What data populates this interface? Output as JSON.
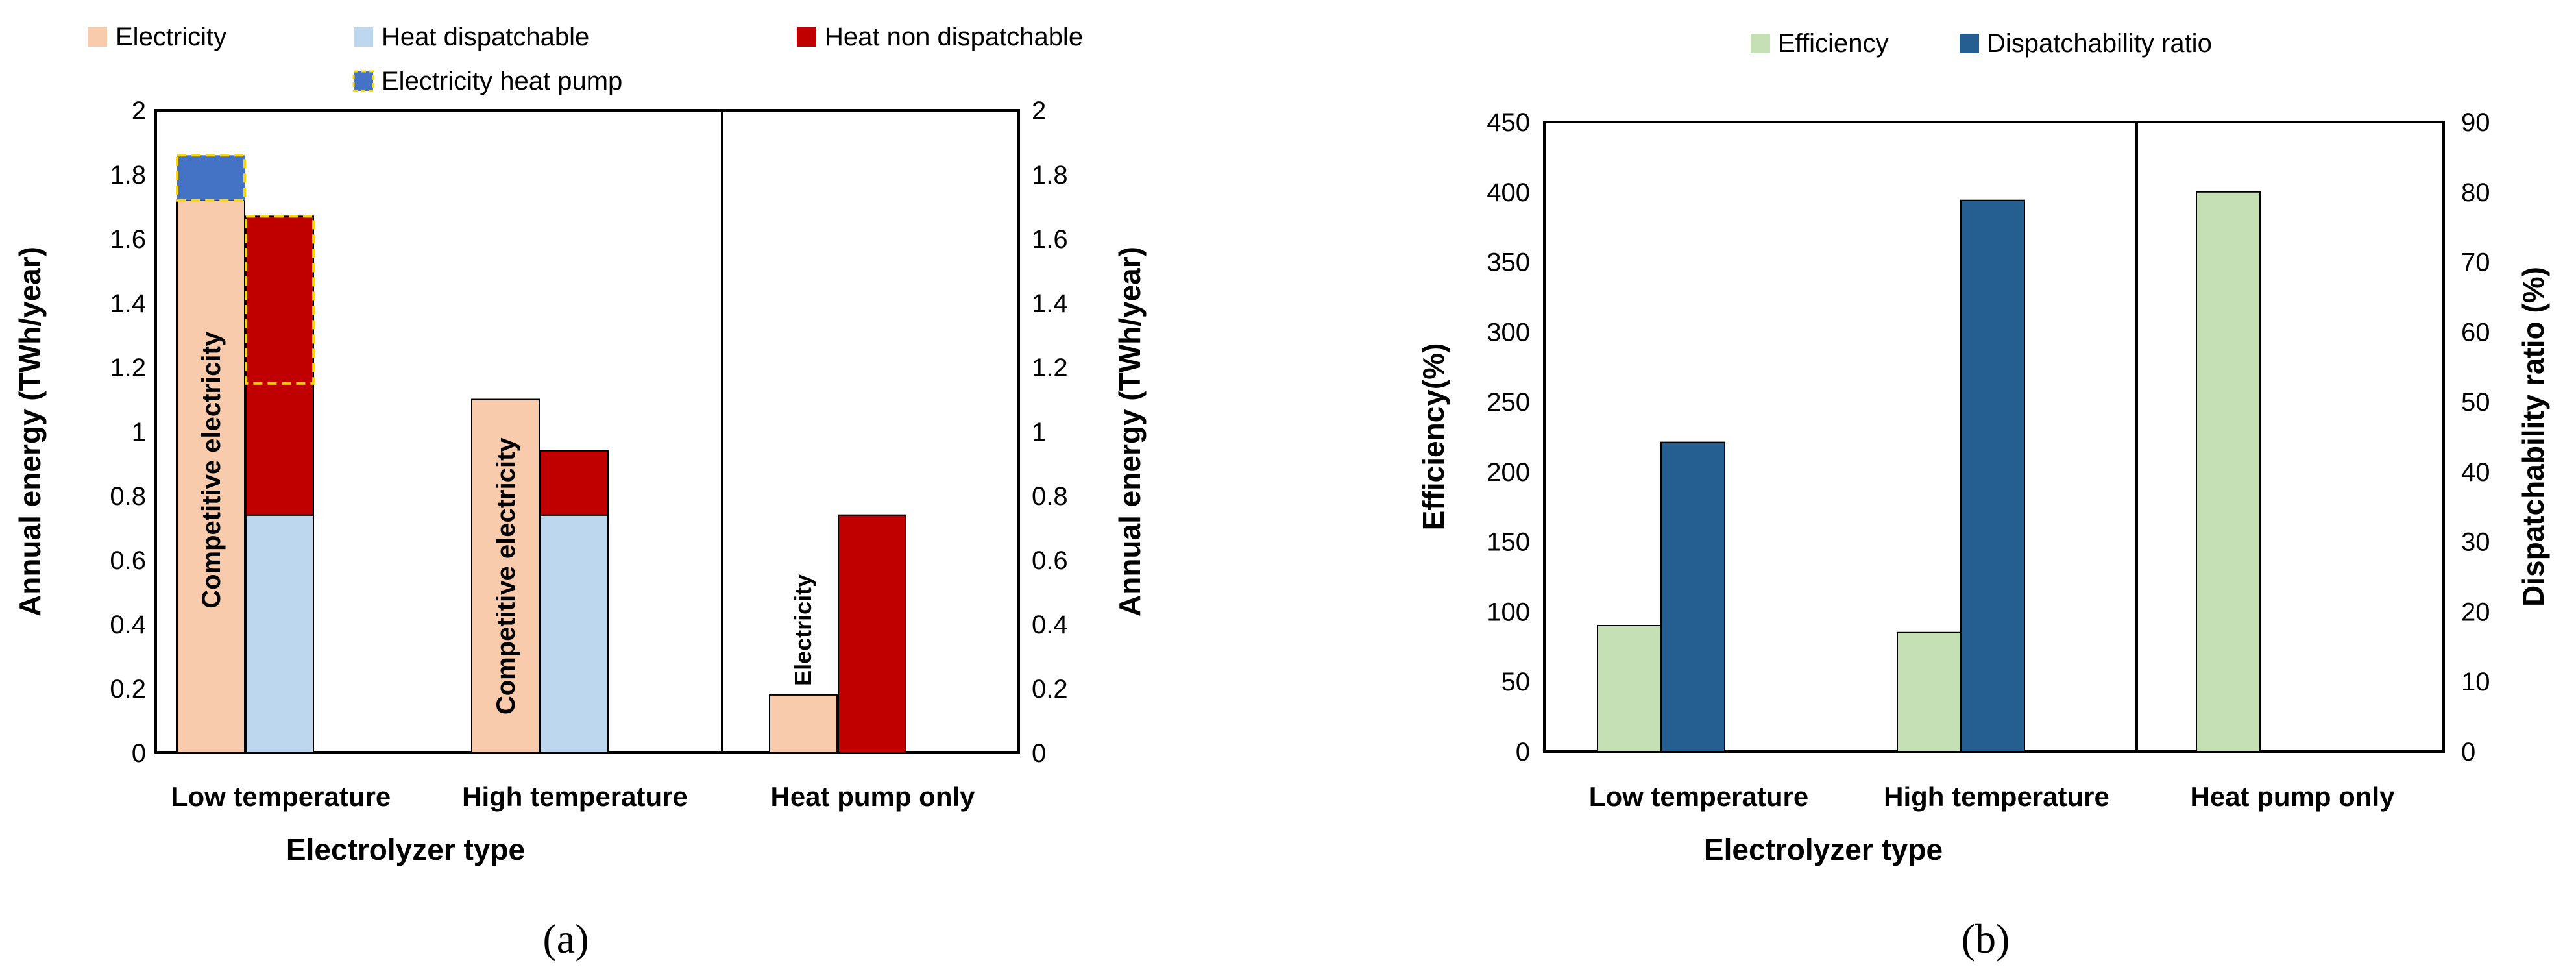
{
  "chart_data": [
    {
      "type": "bar",
      "panel_label": "(a)",
      "categories": [
        "Low temperature",
        "High temperature",
        "Heat pump only"
      ],
      "xlabel": "Electrolyzer type",
      "ylabel": "Annual energy (TWh/year)",
      "ylabel_right": "Annual energy (TWh/year)",
      "ylim": [
        0,
        2
      ],
      "yticks": [
        "0",
        "0.2",
        "0.4",
        "0.6",
        "0.8",
        "1",
        "1.2",
        "1.4",
        "1.6",
        "1.8",
        "2"
      ],
      "legend": [
        {
          "name": "Electricity",
          "color": "#F8CBAD"
        },
        {
          "name": "Heat dispatchable",
          "color": "#BDD7EE"
        },
        {
          "name": "Heat non dispatchable",
          "color": "#C00000"
        },
        {
          "name": "Electricity heat pump",
          "color": "#4472C4"
        }
      ],
      "series": [
        {
          "name": "Electricity",
          "values": [
            1.72,
            1.1,
            0.18
          ]
        },
        {
          "name": "Electricity heat pump",
          "values": [
            0.14,
            0,
            0
          ]
        },
        {
          "name": "Heat dispatchable",
          "values": [
            0.74,
            0.74,
            0
          ]
        },
        {
          "name": "Heat non dispatchable",
          "values": [
            0.93,
            0.2,
            0.74
          ]
        }
      ],
      "highlight_box": {
        "category": "Low temperature",
        "from": 1.15,
        "to": 1.67
      },
      "bar_annotations": [
        "Competitive electricity",
        "Competitive electricity",
        "Electricity"
      ]
    },
    {
      "type": "bar",
      "panel_label": "(b)",
      "categories": [
        "Low temperature",
        "High temperature",
        "Heat pump only"
      ],
      "xlabel": "Electrolyzer type",
      "ylabel": "Efficiency(%)",
      "ylabel_right": "Dispatchability ratio (%)",
      "ylim": [
        0,
        450
      ],
      "ylim_right": [
        0,
        90
      ],
      "yticks": [
        "0",
        "50",
        "100",
        "150",
        "200",
        "250",
        "300",
        "350",
        "400",
        "450"
      ],
      "yticks_right": [
        "0",
        "10",
        "20",
        "30",
        "40",
        "50",
        "60",
        "70",
        "80",
        "90"
      ],
      "legend": [
        {
          "name": "Efficiency",
          "color": "#C5E0B4"
        },
        {
          "name": "Dispatchability ratio",
          "color": "#255E91"
        }
      ],
      "series": [
        {
          "name": "Efficiency",
          "axis": "left",
          "values": [
            90,
            85,
            400
          ]
        },
        {
          "name": "Dispatchability ratio",
          "axis": "right",
          "values": [
            44.2,
            78.8,
            0
          ]
        }
      ]
    }
  ]
}
